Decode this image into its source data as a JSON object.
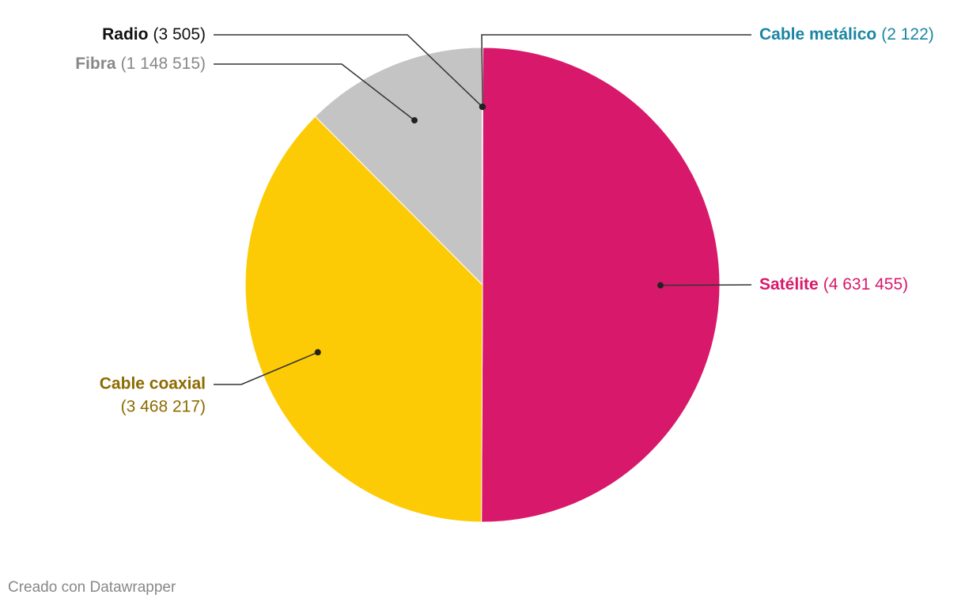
{
  "chart_data": {
    "type": "pie",
    "categories": [
      "Cable metálico",
      "Satélite",
      "Cable coaxial",
      "Fibra",
      "Radio"
    ],
    "values": [
      2122,
      4631455,
      3468217,
      1148515,
      3505
    ],
    "value_labels": [
      "(2 122)",
      "(4 631 455)",
      "(3 468 217)",
      "(1 148 515)",
      "(3 505)"
    ],
    "colors": [
      "#1d8aa8",
      "#d8196b",
      "#fdcb05",
      "#c4c4c4",
      "#222222"
    ],
    "label_colors": [
      "#1b86a3",
      "#d8196b",
      "#8c6b00",
      "#888888",
      "#111111"
    ],
    "credit": "Creado con Datawrapper"
  }
}
